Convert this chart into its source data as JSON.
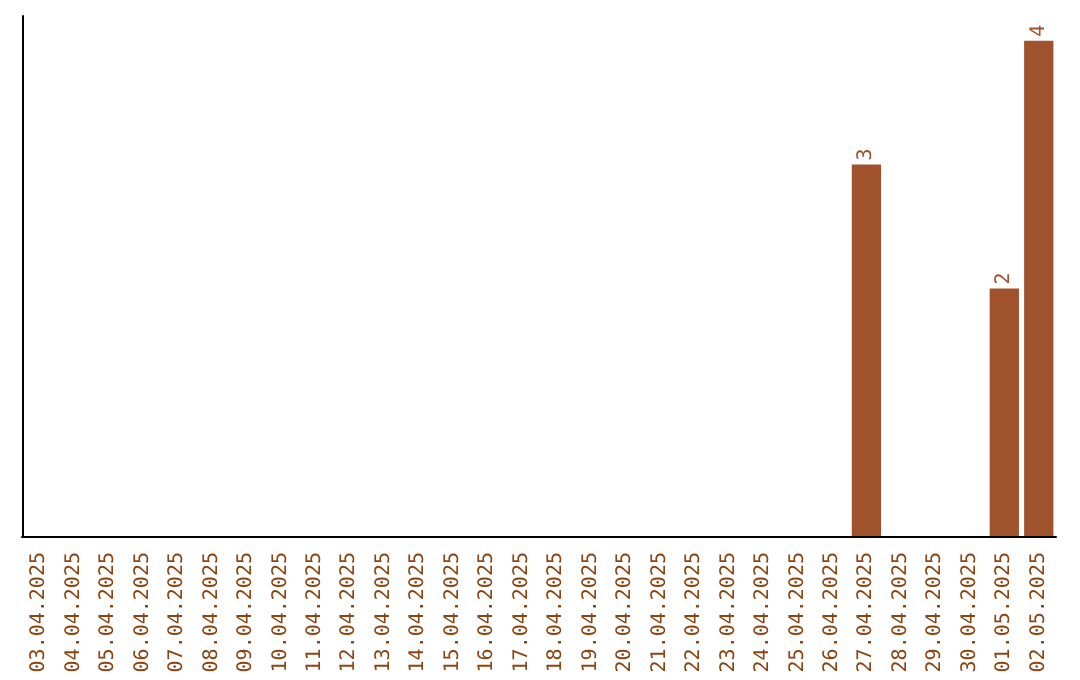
{
  "chart_data": {
    "type": "bar",
    "categories": [
      "03.04.2025",
      "04.04.2025",
      "05.04.2025",
      "06.04.2025",
      "07.04.2025",
      "08.04.2025",
      "09.04.2025",
      "10.04.2025",
      "11.04.2025",
      "12.04.2025",
      "13.04.2025",
      "14.04.2025",
      "15.04.2025",
      "16.04.2025",
      "17.04.2025",
      "18.04.2025",
      "19.04.2025",
      "20.04.2025",
      "21.04.2025",
      "22.04.2025",
      "23.04.2025",
      "24.04.2025",
      "25.04.2025",
      "26.04.2025",
      "27.04.2025",
      "28.04.2025",
      "29.04.2025",
      "30.04.2025",
      "01.05.2025",
      "02.05.2025"
    ],
    "values": [
      null,
      null,
      null,
      null,
      null,
      null,
      null,
      null,
      null,
      null,
      null,
      null,
      null,
      null,
      null,
      null,
      null,
      null,
      null,
      null,
      null,
      null,
      null,
      null,
      3,
      null,
      null,
      null,
      2,
      4
    ],
    "value_labels": [
      null,
      null,
      null,
      null,
      null,
      null,
      null,
      null,
      null,
      null,
      null,
      null,
      null,
      null,
      null,
      null,
      null,
      null,
      null,
      null,
      null,
      null,
      null,
      null,
      "3",
      null,
      null,
      null,
      "2",
      "4"
    ],
    "color": "#a0522d",
    "grid": false,
    "tick_labels": "x"
  }
}
